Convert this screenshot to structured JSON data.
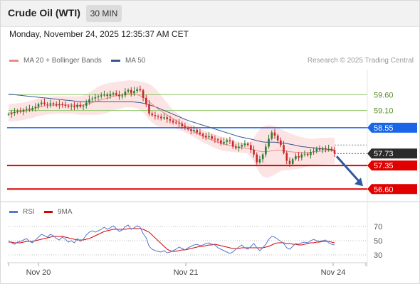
{
  "header": {
    "title": "Crude Oil (WTI)",
    "timeframe": "30 MIN"
  },
  "date_line": "Monday, November 24, 2025 12:35:37 AM CET",
  "legend": {
    "item1": "MA 20 + Bollinger Bands",
    "item2": "MA 50",
    "copyright": "Research © 2025 Trading Central"
  },
  "rsi_legend": {
    "item1": "RSI",
    "item2": "9MA"
  },
  "colors": {
    "ma20": "#f08a80",
    "ma50": "#3a5590",
    "band_fill": "#fde4e4",
    "up": "#2e7d32",
    "down": "#c62828",
    "resistance_blue": "#1a66e6",
    "support_red": "#e00000",
    "target_green": "#8fc46a",
    "last_price": "#2b2b2b",
    "arrow": "#2d5aa0",
    "rsi": "#5577cc",
    "rsi_ma": "#dd0000"
  },
  "chart_data": {
    "type": "line",
    "title": "Crude Oil (WTI)",
    "timeframe": "30 MIN",
    "x_labels": [
      "Nov 20",
      "Nov 21",
      "Nov 24"
    ],
    "price_range": [
      56.2,
      60.4
    ],
    "levels": [
      {
        "value": 59.6,
        "label": "59.60",
        "kind": "target"
      },
      {
        "value": 59.1,
        "label": "59.10",
        "kind": "target"
      },
      {
        "value": 58.55,
        "label": "58.55",
        "kind": "resistance"
      },
      {
        "value": 57.73,
        "label": "57.73",
        "kind": "last"
      },
      {
        "value": 57.35,
        "label": "57.35",
        "kind": "support"
      },
      {
        "value": 56.6,
        "label": "56.60",
        "kind": "support"
      }
    ],
    "last_price": 57.73,
    "forecast_target": 56.6,
    "price_series": [
      {
        "name": "Close",
        "values": [
          58.98,
          59.02,
          59.05,
          59.08,
          59.06,
          59.12,
          59.15,
          59.12,
          59.18,
          59.22,
          59.3,
          59.35,
          59.3,
          59.28,
          59.33,
          59.3,
          59.26,
          59.3,
          59.28,
          59.25,
          59.22,
          59.24,
          59.2,
          59.28,
          59.22,
          59.25,
          59.35,
          59.45,
          59.48,
          59.52,
          59.55,
          59.58,
          59.6,
          59.56,
          59.62,
          59.65,
          59.6,
          59.55,
          59.58,
          59.7,
          59.75,
          59.65,
          59.72,
          59.78,
          59.74,
          59.5,
          59.3,
          59.0,
          58.95,
          58.92,
          58.9,
          58.85,
          58.88,
          58.82,
          58.78,
          58.72,
          58.7,
          58.68,
          58.6,
          58.55,
          58.5,
          58.45,
          58.48,
          58.4,
          58.35,
          58.3,
          58.25,
          58.28,
          58.2,
          58.18,
          58.15,
          58.05,
          58.1,
          58.15,
          58.12,
          57.95,
          57.9,
          57.95,
          58.0,
          58.05,
          58.0,
          57.85,
          57.7,
          57.45,
          57.55,
          57.7,
          57.95,
          58.2,
          58.4,
          58.3,
          58.15,
          58.0,
          57.75,
          57.5,
          57.4,
          57.55,
          57.65,
          57.6,
          57.7,
          57.72,
          57.68,
          57.78,
          57.8,
          57.88,
          57.85,
          57.9,
          57.86,
          57.88,
          57.84,
          57.73
        ]
      },
      {
        "name": "MA 20",
        "values": [
          59.02,
          59.03,
          59.04,
          59.05,
          59.06,
          59.08,
          59.1,
          59.12,
          59.14,
          59.17,
          59.2,
          59.22,
          59.24,
          59.25,
          59.26,
          59.27,
          59.28,
          59.28,
          59.28,
          59.28,
          59.27,
          59.27,
          59.27,
          59.26,
          59.26,
          59.27,
          59.29,
          59.32,
          59.35,
          59.38,
          59.41,
          59.44,
          59.47,
          59.49,
          59.52,
          59.55,
          59.57,
          59.58,
          59.6,
          59.62,
          59.63,
          59.63,
          59.62,
          59.6,
          59.57,
          59.52,
          59.45,
          59.37,
          59.3,
          59.22,
          59.15,
          59.08,
          59.02,
          58.96,
          58.9,
          58.84,
          58.78,
          58.72,
          58.66,
          58.6,
          58.54,
          58.48,
          58.43,
          58.38,
          58.33,
          58.28,
          58.24,
          58.2,
          58.16,
          58.12,
          58.09,
          58.06,
          58.03,
          58.01,
          57.99,
          57.97,
          57.95,
          57.93,
          57.91,
          57.9,
          57.89,
          57.87,
          57.85,
          57.82,
          57.8,
          57.79,
          57.79,
          57.8,
          57.82,
          57.83,
          57.84,
          57.84,
          57.83,
          57.81,
          57.79,
          57.78,
          57.77,
          57.76,
          57.76,
          57.76,
          57.76,
          57.77,
          57.78,
          57.79,
          57.8,
          57.81,
          57.81,
          57.82,
          57.82,
          57.81
        ]
      },
      {
        "name": "BB Upper",
        "values": [
          59.3,
          59.31,
          59.32,
          59.33,
          59.34,
          59.36,
          59.38,
          59.4,
          59.42,
          59.45,
          59.48,
          59.5,
          59.52,
          59.53,
          59.54,
          59.55,
          59.56,
          59.56,
          59.56,
          59.56,
          59.55,
          59.55,
          59.55,
          59.55,
          59.56,
          59.58,
          59.62,
          59.68,
          59.74,
          59.8,
          59.86,
          59.9,
          59.94,
          59.96,
          59.98,
          60.0,
          60.01,
          60.02,
          60.03,
          60.04,
          60.06,
          60.06,
          60.05,
          60.04,
          60.02,
          60.0,
          59.98,
          59.94,
          59.88,
          59.8,
          59.7,
          59.58,
          59.46,
          59.34,
          59.22,
          59.12,
          59.04,
          58.96,
          58.88,
          58.8,
          58.72,
          58.66,
          58.6,
          58.56,
          58.52,
          58.48,
          58.44,
          58.4,
          58.37,
          58.34,
          58.31,
          58.28,
          58.25,
          58.22,
          58.19,
          58.16,
          58.13,
          58.1,
          58.08,
          58.06,
          58.05,
          58.12,
          58.24,
          58.38,
          58.5,
          58.58,
          58.62,
          58.63,
          58.62,
          58.6,
          58.56,
          58.51,
          58.46,
          58.42,
          58.38,
          58.34,
          58.31,
          58.28,
          58.25,
          58.23,
          58.21,
          58.2,
          58.2,
          58.21,
          58.22,
          58.23,
          58.23,
          58.24,
          58.24,
          58.22
        ]
      },
      {
        "name": "BB Lower",
        "values": [
          58.74,
          58.75,
          58.76,
          58.77,
          58.78,
          58.8,
          58.82,
          58.84,
          58.86,
          58.89,
          58.92,
          58.94,
          58.96,
          58.97,
          58.98,
          58.99,
          59.0,
          59.0,
          59.0,
          59.0,
          58.99,
          58.99,
          58.99,
          58.97,
          58.96,
          58.96,
          58.96,
          58.96,
          58.96,
          58.96,
          58.96,
          58.98,
          59.0,
          59.02,
          59.06,
          59.1,
          59.13,
          59.14,
          59.17,
          59.2,
          59.2,
          59.2,
          59.19,
          59.16,
          59.12,
          59.04,
          58.92,
          58.8,
          58.72,
          58.64,
          58.6,
          58.58,
          58.58,
          58.58,
          58.58,
          58.56,
          58.52,
          58.48,
          58.44,
          58.4,
          58.36,
          58.3,
          58.26,
          58.2,
          58.14,
          58.08,
          58.04,
          58.0,
          57.95,
          57.9,
          57.87,
          57.84,
          57.81,
          57.8,
          57.79,
          57.78,
          57.77,
          57.76,
          57.74,
          57.74,
          57.73,
          57.62,
          57.46,
          57.26,
          57.1,
          57.0,
          56.96,
          56.97,
          57.02,
          57.06,
          57.12,
          57.17,
          57.2,
          57.2,
          57.2,
          57.22,
          57.23,
          57.24,
          57.27,
          57.29,
          57.31,
          57.34,
          57.36,
          57.37,
          57.38,
          57.39,
          57.39,
          57.4,
          57.4,
          57.4
        ]
      },
      {
        "name": "MA 50",
        "values": [
          59.62,
          59.61,
          59.6,
          59.59,
          59.58,
          59.57,
          59.56,
          59.55,
          59.54,
          59.53,
          59.52,
          59.51,
          59.5,
          59.49,
          59.48,
          59.47,
          59.46,
          59.45,
          59.44,
          59.43,
          59.42,
          59.41,
          59.4,
          59.39,
          59.38,
          59.38,
          59.38,
          59.38,
          59.38,
          59.38,
          59.38,
          59.38,
          59.38,
          59.38,
          59.38,
          59.38,
          59.38,
          59.38,
          59.38,
          59.38,
          59.38,
          59.38,
          59.37,
          59.36,
          59.35,
          59.33,
          59.31,
          59.28,
          59.25,
          59.22,
          59.18,
          59.14,
          59.1,
          59.06,
          59.02,
          58.98,
          58.94,
          58.9,
          58.86,
          58.82,
          58.78,
          58.75,
          58.72,
          58.69,
          58.66,
          58.63,
          58.6,
          58.57,
          58.54,
          58.51,
          58.48,
          58.45,
          58.42,
          58.39,
          58.36,
          58.33,
          58.3,
          58.27,
          58.25,
          58.23,
          58.21,
          58.19,
          58.17,
          58.14,
          58.12,
          58.1,
          58.09,
          58.09,
          58.09,
          58.09,
          58.08,
          58.07,
          58.06,
          58.05,
          58.03,
          58.01,
          57.99,
          57.97,
          57.95,
          57.94,
          57.93,
          57.92,
          57.91,
          57.9,
          57.89,
          57.88,
          57.87,
          57.86,
          57.85,
          57.84
        ]
      }
    ],
    "rsi": {
      "range": [
        20,
        80
      ],
      "ticks": [
        30,
        50,
        70
      ],
      "rsi_values": [
        50,
        47,
        45,
        48,
        49,
        51,
        53,
        49,
        47,
        51,
        55,
        59,
        57,
        55,
        59,
        57,
        53,
        51,
        55,
        52,
        48,
        50,
        47,
        53,
        49,
        52,
        58,
        62,
        64,
        62,
        64,
        66,
        69,
        66,
        68,
        71,
        67,
        63,
        65,
        70,
        72,
        66,
        68,
        71,
        69,
        60,
        54,
        42,
        38,
        36,
        35,
        34,
        36,
        33,
        34,
        36,
        38,
        41,
        39,
        37,
        40,
        42,
        44,
        45,
        43,
        44,
        46,
        47,
        45,
        44,
        40,
        38,
        36,
        34,
        32,
        34,
        38,
        41,
        44,
        40,
        38,
        42,
        46,
        40,
        36,
        40,
        45,
        52,
        56,
        55,
        52,
        49,
        46,
        40,
        38,
        42,
        46,
        45,
        47,
        48,
        47,
        50,
        52,
        50,
        49,
        50,
        51,
        47,
        45,
        44
      ],
      "ma_values": [
        48,
        48,
        47,
        47,
        47,
        48,
        49,
        49,
        49,
        50,
        51,
        52,
        53,
        54,
        55,
        56,
        56,
        56,
        56,
        55,
        54,
        53,
        52,
        51,
        51,
        51,
        52,
        53,
        55,
        57,
        59,
        61,
        63,
        64,
        65,
        66,
        66,
        66,
        66,
        66,
        67,
        67,
        67,
        67,
        67,
        66,
        64,
        62,
        58,
        54,
        50,
        46,
        42,
        38,
        36,
        35,
        35,
        36,
        37,
        37,
        38,
        39,
        40,
        41,
        42,
        42,
        43,
        44,
        44,
        45,
        44,
        43,
        42,
        41,
        40,
        39,
        39,
        39,
        40,
        40,
        40,
        40,
        40,
        40,
        40,
        40,
        41,
        42,
        44,
        46,
        47,
        47,
        47,
        46,
        46,
        45,
        45,
        44,
        44,
        45,
        46,
        47,
        47,
        48,
        48,
        49,
        49,
        49,
        48,
        47
      ]
    }
  }
}
